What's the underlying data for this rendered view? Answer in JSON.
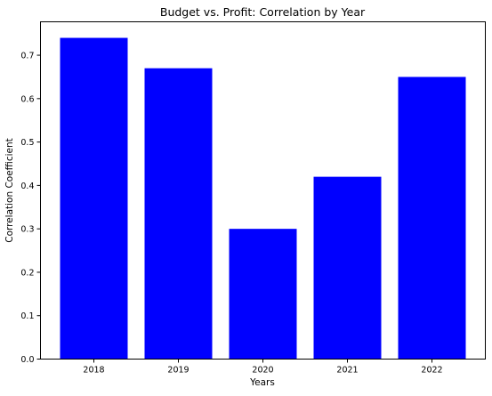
{
  "chart_data": {
    "type": "bar",
    "title": "Budget vs. Profit: Correlation by Year",
    "xlabel": "Years",
    "ylabel": "Correlation Coefficient",
    "categories": [
      "2018",
      "2019",
      "2020",
      "2021",
      "2022"
    ],
    "values": [
      0.74,
      0.67,
      0.3,
      0.42,
      0.65
    ],
    "ylim": [
      0,
      0.777
    ],
    "yticks": [
      "0.0",
      "0.1",
      "0.2",
      "0.3",
      "0.4",
      "0.5",
      "0.6",
      "0.7"
    ],
    "bar_color": "#0000ff",
    "grid": false,
    "legend": "none"
  }
}
